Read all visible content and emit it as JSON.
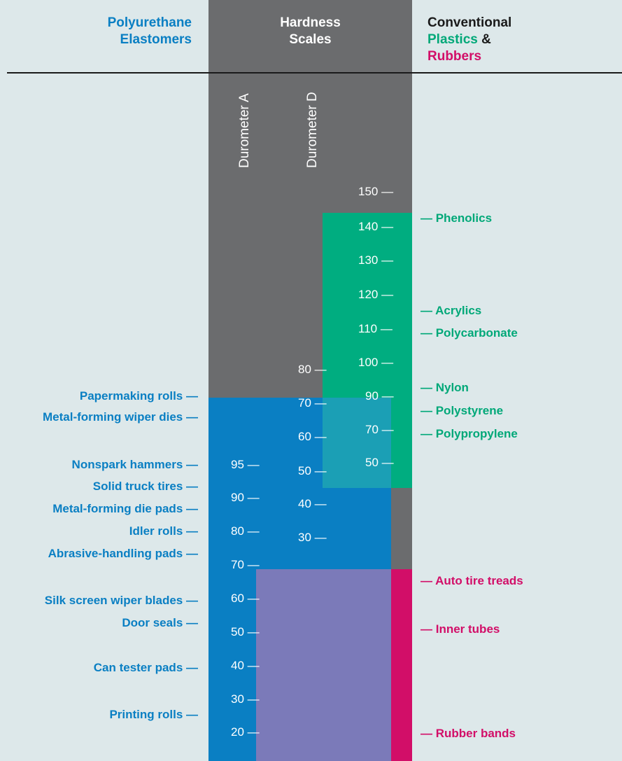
{
  "header": {
    "left_title_line1": "Polyurethane",
    "left_title_line2": "Elastomers",
    "center_title_line1": "Hardness",
    "center_title_line2": "Scales",
    "right_title_line1": "Conventional",
    "right_title_plastics": "Plastics",
    "right_title_amp": " &",
    "right_title_line3": "Rubbers"
  },
  "scales": {
    "durometer_a_label": "Durometer A",
    "durometer_d_label": "Durometer D",
    "rockwell_ticks": [
      "150 —",
      "140 —",
      "130 —",
      "120 —",
      "110 —",
      "100 —",
      "90 —",
      "70 —",
      "50 —"
    ],
    "durometer_d_ticks": [
      "80 —",
      "70 —",
      "60 —",
      "50 —",
      "40 —",
      "30 —"
    ],
    "durometer_a_ticks": [
      "95 —",
      "90 —",
      "80 —",
      "70 —",
      "60 —",
      "50 —",
      "40 —",
      "30 —",
      "20 —"
    ]
  },
  "polyurethane_applications": [
    "Papermaking rolls —",
    "Metal-forming wiper dies —",
    "Nonspark hammers —",
    "Solid truck tires —",
    "Metal-forming die pads —",
    "Idler rolls —",
    "Abrasive-handling pads —",
    "Silk screen wiper blades —",
    "Door seals —",
    "Can tester pads —",
    "Printing rolls —"
  ],
  "plastics": [
    "— Phenolics",
    "— Acrylics",
    "— Polycarbonate",
    "— Nylon",
    "— Polystyrene",
    "— Polypropylene"
  ],
  "rubbers": [
    "— Auto tire treads",
    "— Inner tubes",
    "— Rubber bands"
  ],
  "colors": {
    "background": "#dde8ea",
    "gray_band": "#6b6c6e",
    "polyurethane_blue": "#0a7fc3",
    "plastics_green": "#00ad80",
    "rubbers_magenta": "#d20e68",
    "purple_overlap": "#7b7ab9",
    "teal_overlap": "#1b9fb5"
  }
}
